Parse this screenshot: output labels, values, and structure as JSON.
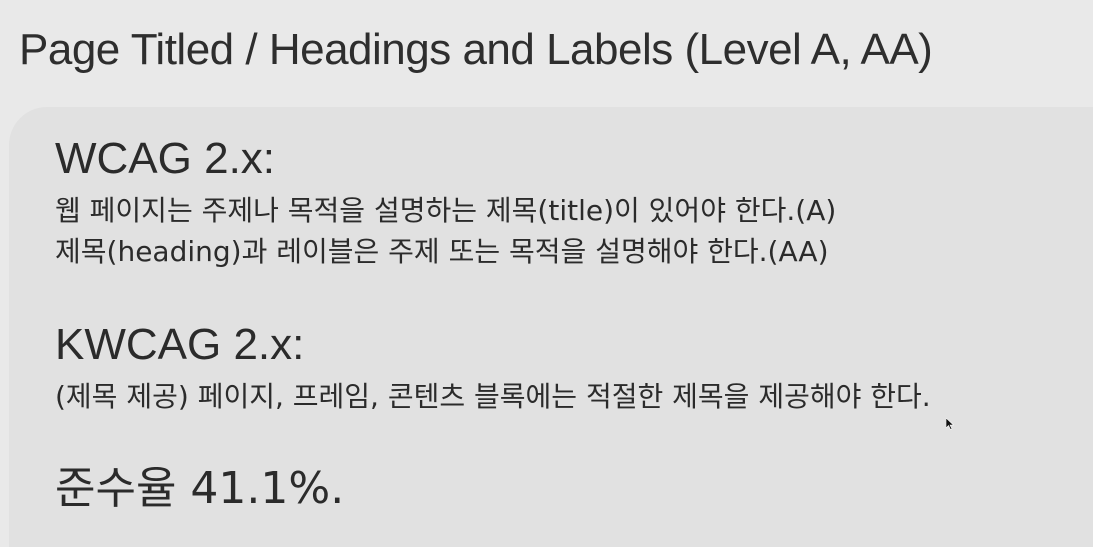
{
  "slide": {
    "title": "Page Titled / Headings and Labels (Level A, AA)"
  },
  "wcag": {
    "heading": "WCAG 2.x:",
    "lines": [
      "웹 페이지는 주제나 목적을 설명하는 제목(title)이 있어야 한다.(A)",
      "제목(heading)과 레이블은 주제 또는 목적을 설명해야 한다.(AA)"
    ]
  },
  "kwcag": {
    "heading": "KWCAG 2.x:",
    "lines": [
      "(제목 제공) 페이지, 프레임, 콘텐츠 블록에는 적절한 제목을 제공해야 한다."
    ]
  },
  "compliance": {
    "text": "준수율 41.1%."
  },
  "colors": {
    "background": "#e9e9e9",
    "panel": "#e1e1e1",
    "text": "#2b2b2b"
  }
}
